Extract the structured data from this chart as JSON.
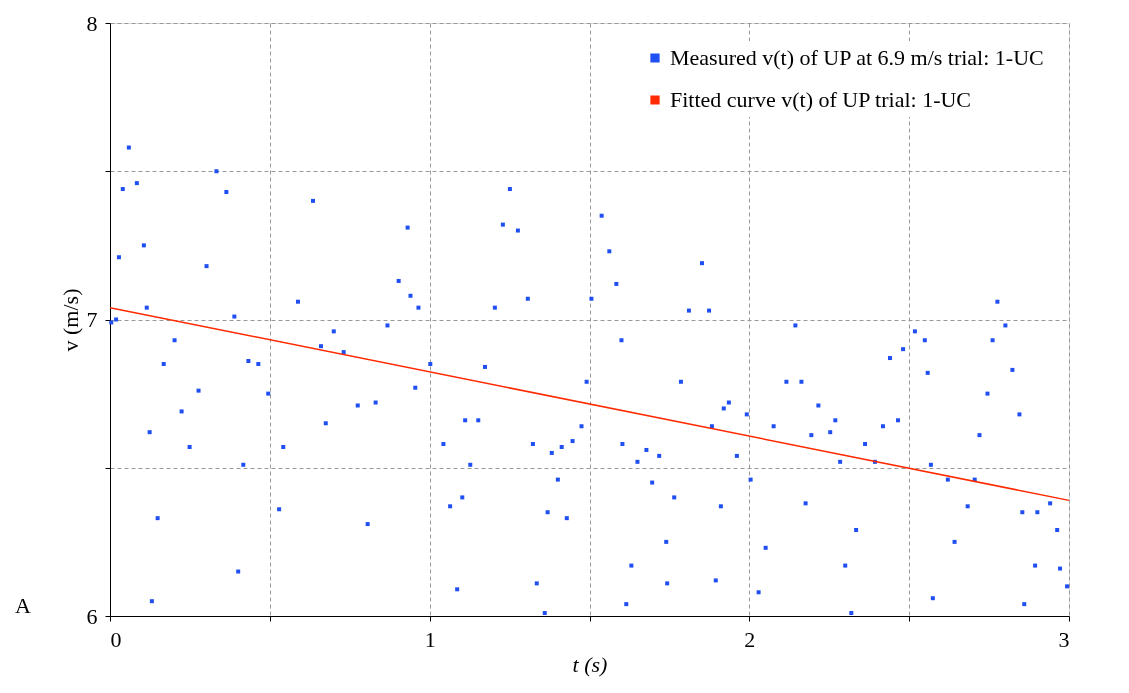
{
  "chart_data": {
    "type": "scatter",
    "xlabel": "t (s)",
    "ylabel": "v (m/s)",
    "xlim": [
      0,
      3
    ],
    "ylim": [
      6,
      8
    ],
    "xticks": [
      0,
      {
        "value": 0.5,
        "label": null
      },
      1,
      {
        "value": 1.5,
        "label": null
      },
      2,
      {
        "value": 2.5,
        "label": null
      },
      3
    ],
    "yticks": [
      6,
      {
        "value": 6.5,
        "label": null
      },
      7,
      {
        "value": 7.5,
        "label": null
      },
      8
    ],
    "grid": true,
    "legend": "top right",
    "annotations": [
      "A"
    ],
    "series": [
      {
        "name": "Measured v(t) of UP at 6.9 m/s trial: 1-UC",
        "type": "scatter",
        "marker": "square",
        "color": "#1f4ff0",
        "x": [
          0.004,
          0.019,
          0.028,
          0.04,
          0.059,
          0.084,
          0.106,
          0.115,
          0.124,
          0.131,
          0.149,
          0.168,
          0.202,
          0.224,
          0.249,
          0.277,
          0.302,
          0.333,
          0.364,
          0.389,
          0.401,
          0.417,
          0.433,
          0.464,
          0.495,
          0.529,
          0.542,
          0.588,
          0.635,
          0.66,
          0.675,
          0.7,
          0.731,
          0.775,
          0.806,
          0.831,
          0.868,
          0.903,
          0.931,
          0.94,
          0.955,
          0.965,
          1.002,
          1.043,
          1.064,
          1.086,
          1.102,
          1.111,
          1.127,
          1.152,
          1.173,
          1.204,
          1.229,
          1.251,
          1.276,
          1.307,
          1.323,
          1.335,
          1.36,
          1.369,
          1.382,
          1.401,
          1.413,
          1.429,
          1.447,
          1.475,
          1.491,
          1.506,
          1.538,
          1.562,
          1.584,
          1.6,
          1.603,
          1.615,
          1.631,
          1.65,
          1.678,
          1.696,
          1.718,
          1.74,
          1.743,
          1.765,
          1.786,
          1.811,
          1.852,
          1.874,
          1.883,
          1.895,
          1.911,
          1.92,
          1.936,
          1.961,
          1.992,
          2.004,
          2.029,
          2.051,
          2.076,
          2.116,
          2.144,
          2.163,
          2.176,
          2.194,
          2.216,
          2.253,
          2.269,
          2.284,
          2.3,
          2.319,
          2.334,
          2.362,
          2.393,
          2.418,
          2.44,
          2.465,
          2.481,
          2.518,
          2.549,
          2.558,
          2.568,
          2.574,
          2.621,
          2.642,
          2.683,
          2.705,
          2.72,
          2.745,
          2.761,
          2.776,
          2.801,
          2.823,
          2.845,
          2.854,
          2.86,
          2.894,
          2.901,
          2.941,
          2.963,
          2.972,
          2.994
        ],
        "values": [
          6.99,
          7.0,
          7.21,
          7.44,
          7.58,
          7.46,
          7.25,
          7.04,
          6.62,
          6.05,
          6.33,
          6.85,
          6.93,
          6.69,
          6.57,
          6.76,
          7.18,
          7.5,
          7.43,
          7.01,
          6.15,
          6.51,
          6.86,
          6.85,
          6.75,
          6.36,
          6.57,
          7.06,
          7.4,
          6.91,
          6.65,
          6.96,
          6.89,
          6.71,
          6.31,
          6.72,
          6.98,
          7.13,
          7.31,
          7.08,
          6.77,
          7.04,
          6.85,
          6.58,
          6.37,
          6.09,
          6.4,
          6.66,
          6.51,
          6.66,
          6.84,
          7.04,
          7.32,
          7.44,
          7.3,
          7.07,
          6.58,
          6.11,
          6.01,
          6.35,
          6.55,
          6.46,
          6.57,
          6.33,
          6.59,
          6.64,
          6.79,
          7.07,
          7.35,
          7.23,
          7.12,
          6.93,
          6.58,
          6.04,
          6.17,
          6.52,
          6.56,
          6.45,
          6.54,
          6.25,
          6.11,
          6.4,
          6.79,
          7.03,
          7.19,
          7.03,
          6.64,
          6.12,
          6.37,
          6.7,
          6.72,
          6.54,
          6.68,
          6.46,
          6.08,
          6.23,
          6.64,
          6.79,
          6.98,
          6.79,
          6.38,
          6.61,
          6.71,
          6.62,
          6.66,
          6.52,
          6.17,
          6.01,
          6.29,
          6.58,
          6.52,
          6.64,
          6.87,
          6.66,
          6.9,
          6.96,
          6.93,
          6.82,
          6.51,
          6.06,
          6.46,
          6.25,
          6.37,
          6.46,
          6.61,
          6.75,
          6.93,
          7.06,
          6.98,
          6.83,
          6.68,
          6.35,
          6.04,
          6.17,
          6.35,
          6.38,
          6.29,
          6.16,
          6.1
        ]
      },
      {
        "name": "Fitted curve v(t) of UP trial: 1-UC",
        "type": "line",
        "line_style": "solid",
        "color": "#ff2a00",
        "x": [
          0,
          3
        ],
        "values": [
          7.04,
          6.39
        ]
      }
    ]
  }
}
